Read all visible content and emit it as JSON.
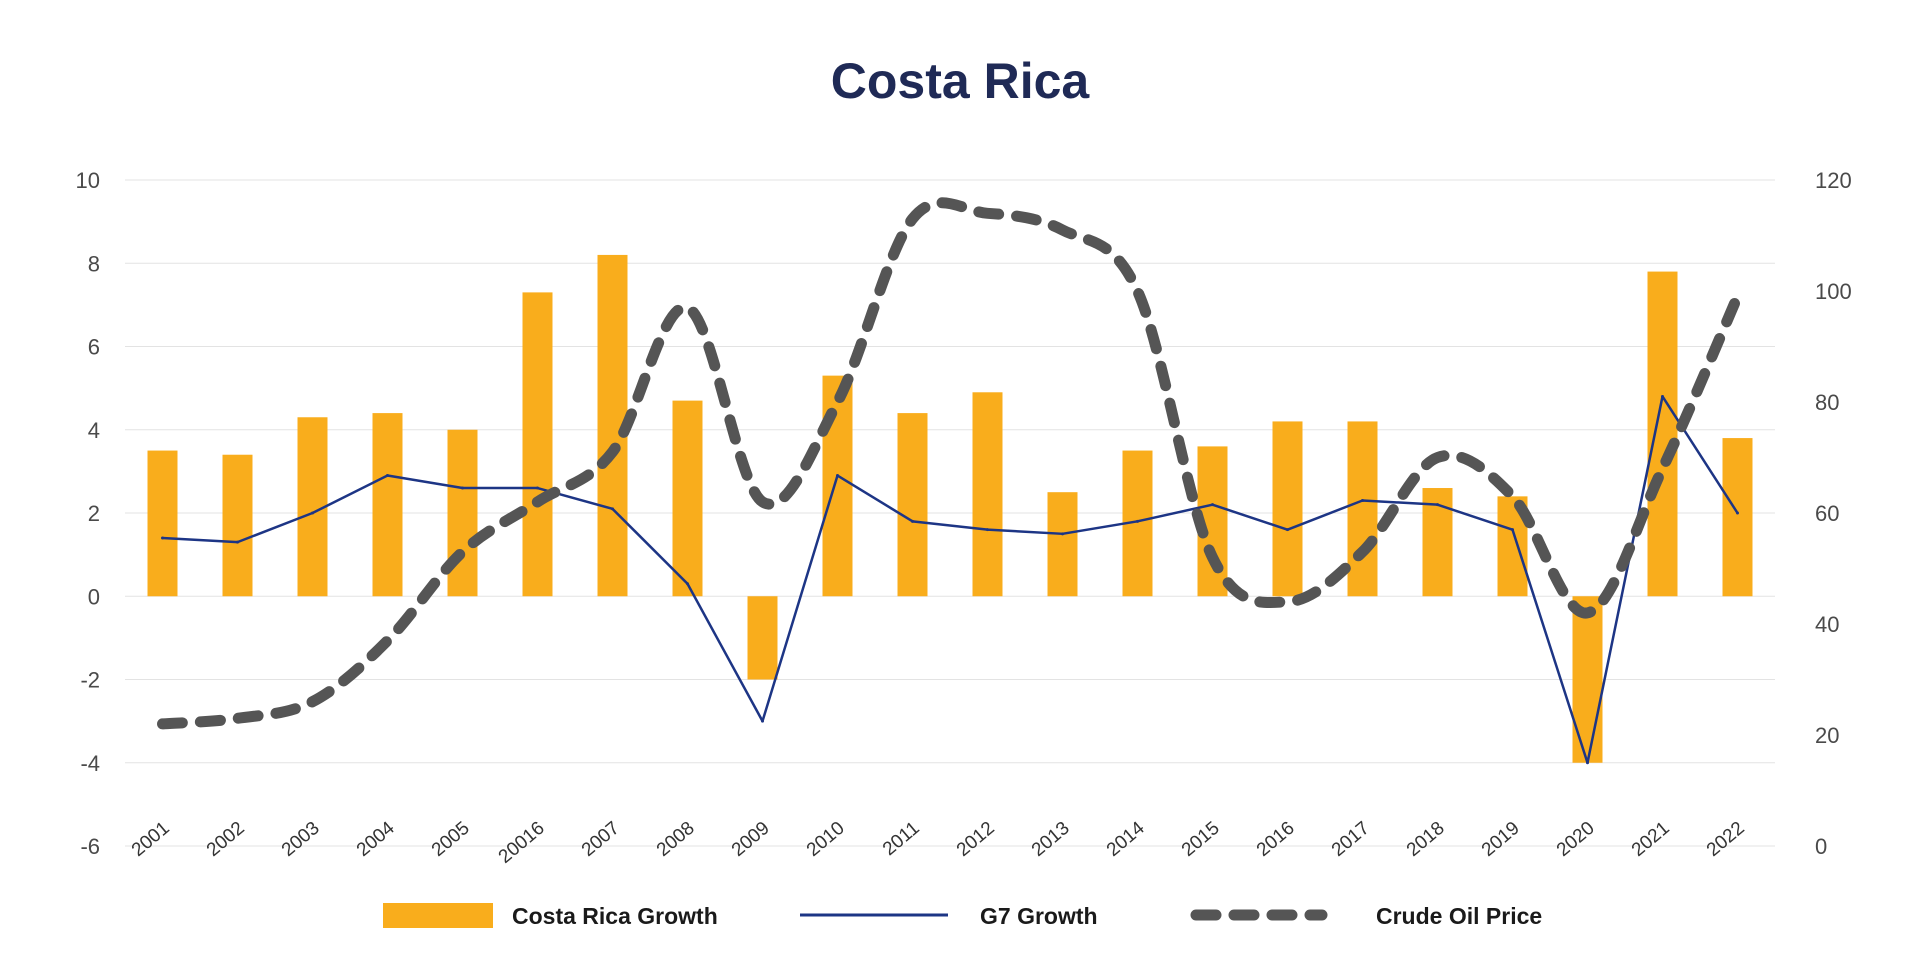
{
  "chart_data": {
    "type": "bar",
    "title": "Costa Rica",
    "categories": [
      "2001",
      "2002",
      "2003",
      "2004",
      "2005",
      "20016",
      "2007",
      "2008",
      "2009",
      "2010",
      "2011",
      "2012",
      "2013",
      "2014",
      "2015",
      "2016",
      "2017",
      "2018",
      "2019",
      "2020",
      "2021",
      "2022"
    ],
    "series": [
      {
        "name": "Costa Rica Growth",
        "type": "bar",
        "axis": "left",
        "color": "#f9ad1c",
        "values": [
          3.5,
          3.4,
          4.3,
          4.4,
          4.0,
          7.3,
          8.2,
          4.7,
          -2.0,
          5.3,
          4.4,
          4.9,
          2.5,
          3.5,
          3.6,
          4.2,
          4.2,
          2.6,
          2.4,
          -4.0,
          7.8,
          3.8
        ]
      },
      {
        "name": "G7 Growth",
        "type": "line",
        "axis": "left",
        "color": "#1d3585",
        "values": [
          1.4,
          1.3,
          2.0,
          2.9,
          2.6,
          2.6,
          2.1,
          0.3,
          -3.0,
          2.9,
          1.8,
          1.6,
          1.5,
          1.8,
          2.2,
          1.6,
          2.3,
          2.2,
          1.6,
          -4.0,
          4.8,
          2.0
        ]
      },
      {
        "name": "Crude Oil Price",
        "type": "line",
        "style": "dashed",
        "axis": "right",
        "color": "#555555",
        "values": [
          22,
          23,
          26,
          37,
          53,
          62,
          71,
          97,
          62,
          80,
          113,
          114,
          111,
          100,
          52,
          44,
          53,
          70,
          63,
          42,
          68,
          99
        ]
      }
    ],
    "y_left": {
      "min": -6,
      "max": 10,
      "ticks": [
        -6,
        -4,
        -2,
        0,
        2,
        4,
        6,
        8,
        10
      ]
    },
    "y_right": {
      "min": 0,
      "max": 120,
      "ticks": [
        0,
        20,
        40,
        60,
        80,
        100,
        120
      ]
    },
    "grid": true,
    "legend": "bottom"
  }
}
